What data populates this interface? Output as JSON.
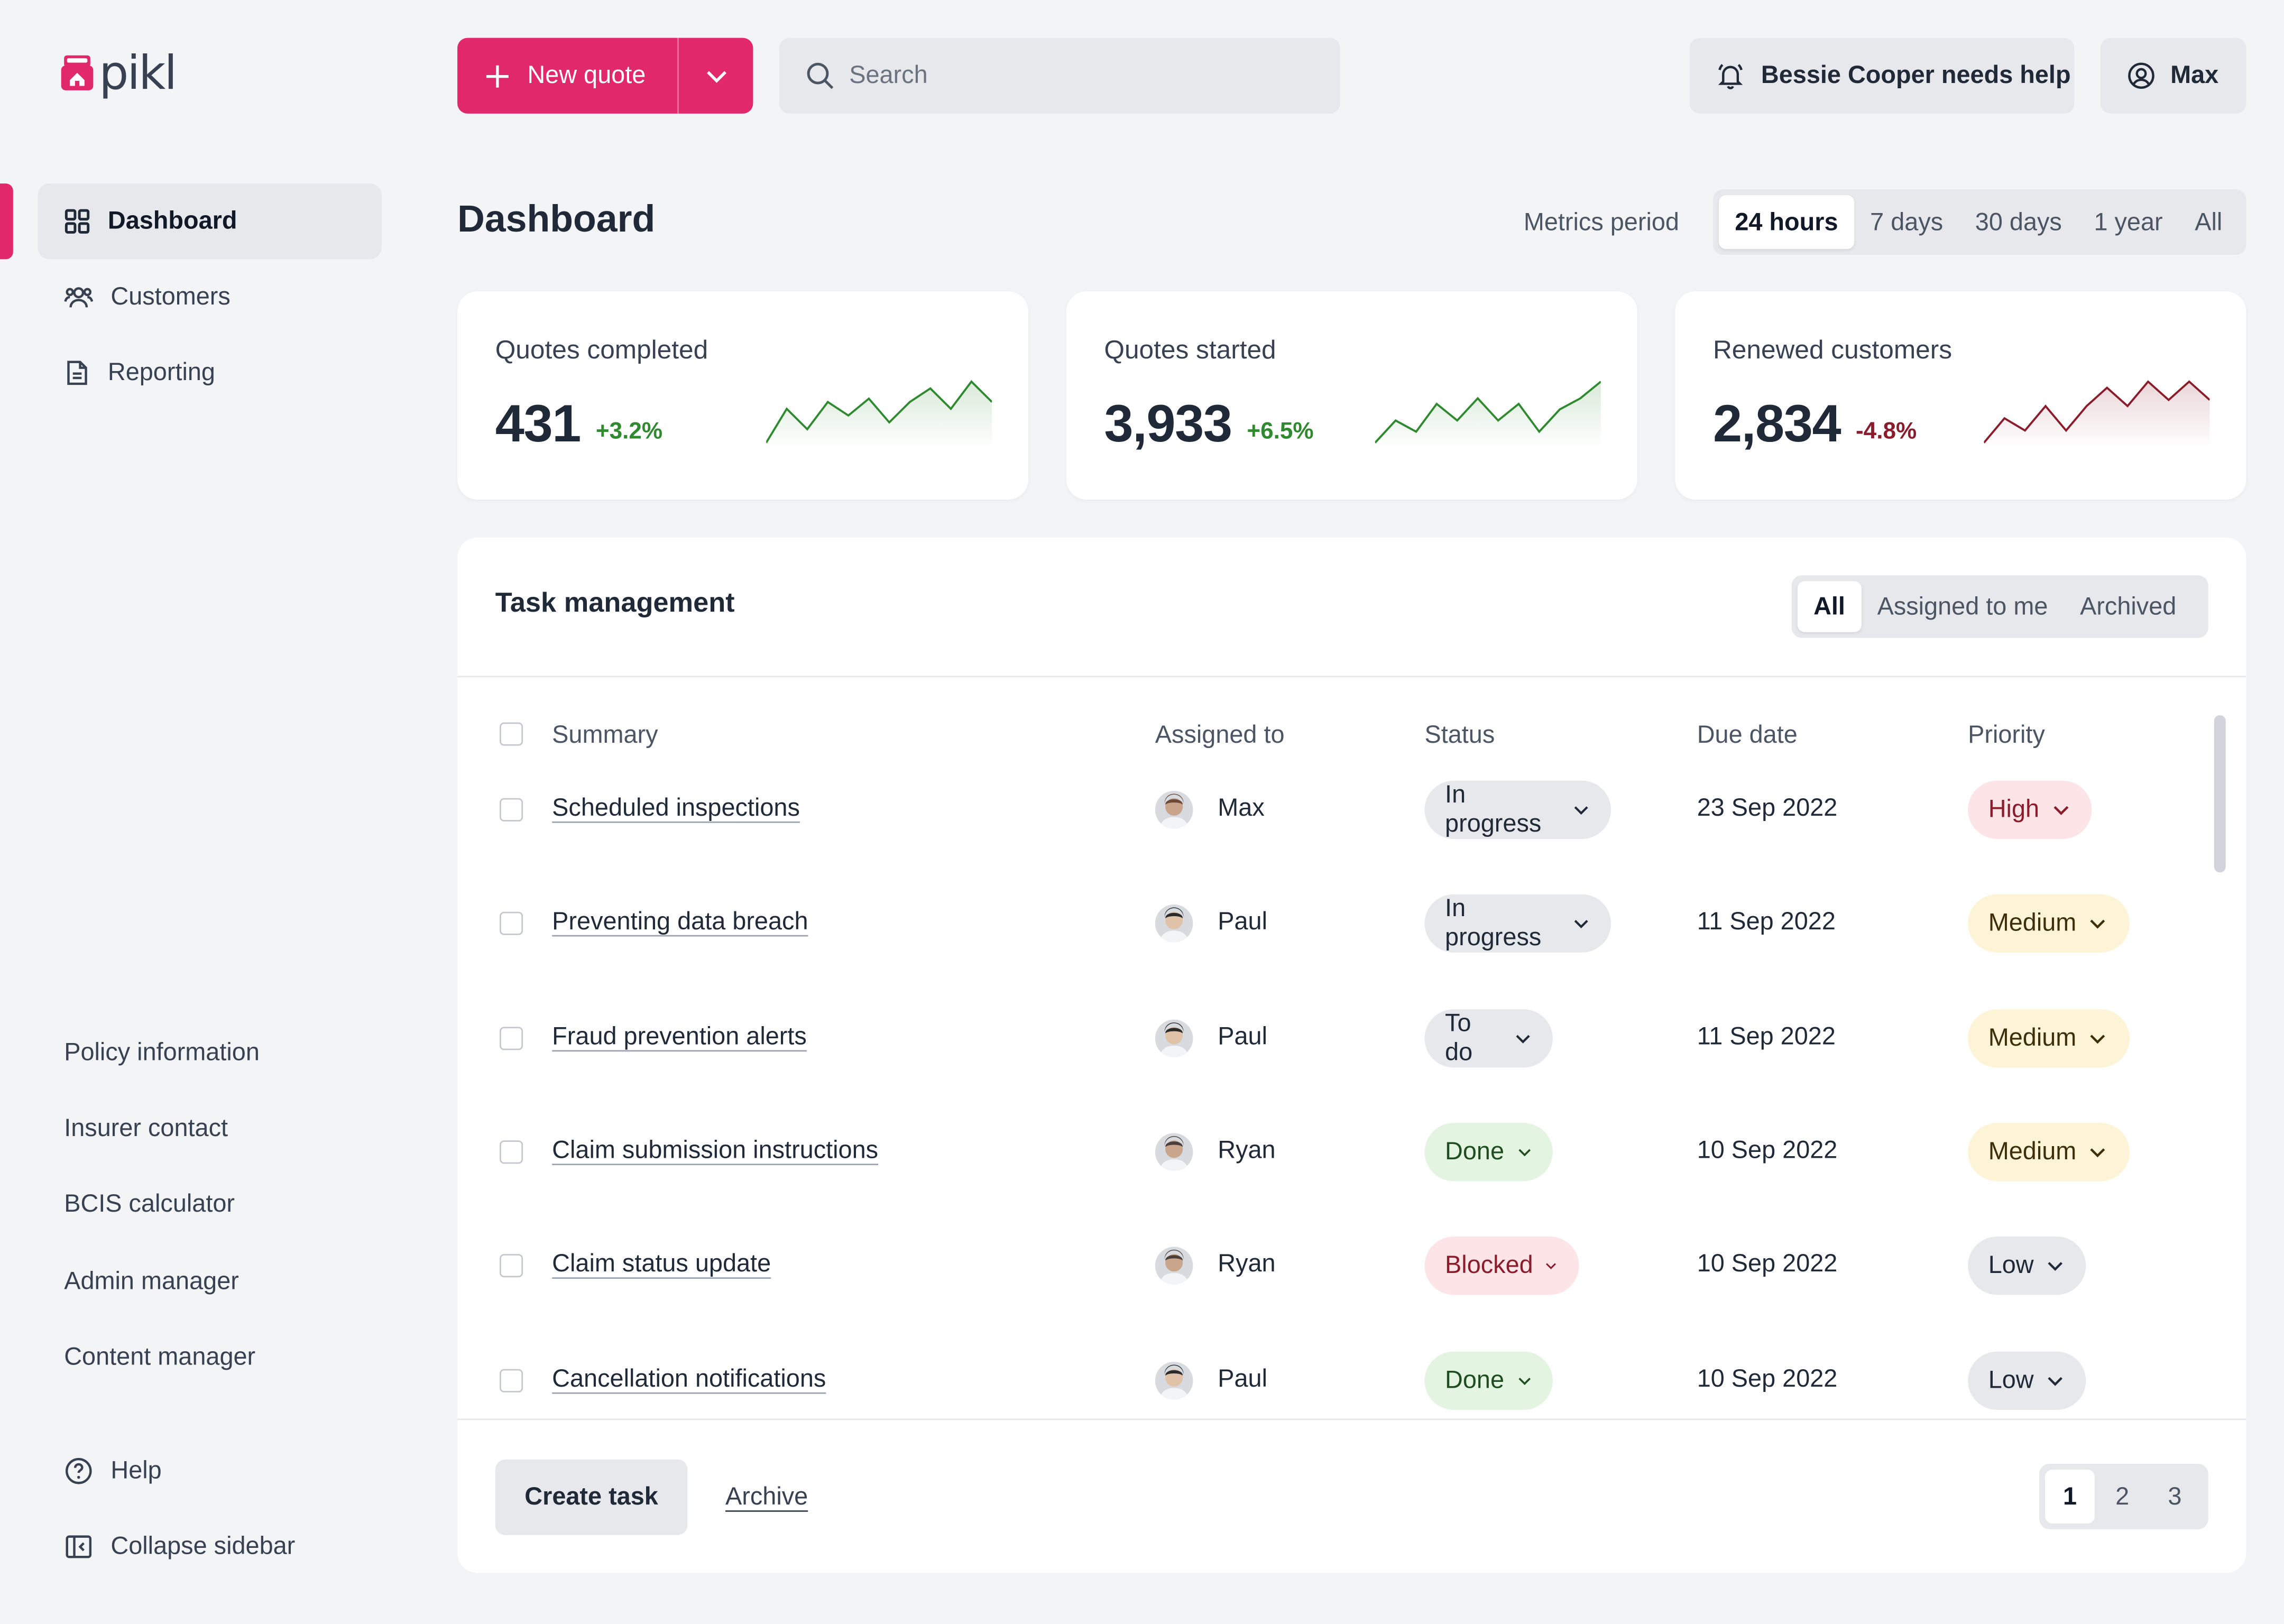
{
  "brand": {
    "name": "pikl",
    "accent": "#e0286b"
  },
  "sidebar": {
    "items": [
      {
        "label": "Dashboard",
        "icon": "dashboard-grid-icon",
        "active": true
      },
      {
        "label": "Customers",
        "icon": "users-icon",
        "active": false
      },
      {
        "label": "Reporting",
        "icon": "document-icon",
        "active": false
      }
    ],
    "links": [
      "Policy information",
      "Insurer contact",
      "BCIS calculator",
      "Admin manager",
      "Content manager"
    ],
    "help": "Help",
    "collapse": "Collapse sidebar"
  },
  "topbar": {
    "new_quote": "New quote",
    "search_placeholder": "Search",
    "help_alert": "Bessie Cooper needs help",
    "user": "Max"
  },
  "header": {
    "title": "Dashboard",
    "metrics_label": "Metrics period",
    "periods": [
      "24 hours",
      "7 days",
      "30 days",
      "1 year",
      "All"
    ],
    "active_period": "24 hours"
  },
  "metrics": [
    {
      "label": "Quotes completed",
      "value": "431",
      "delta": "+3.2%",
      "trend": "up",
      "color": "#2f8a2f",
      "spark": [
        2,
        12,
        6,
        14,
        10,
        15,
        8,
        14,
        18,
        12,
        20,
        14
      ]
    },
    {
      "label": "Quotes started",
      "value": "3,933",
      "delta": "+6.5%",
      "trend": "up",
      "color": "#2f8a2f",
      "spark": [
        2,
        10,
        6,
        16,
        10,
        18,
        10,
        16,
        6,
        14,
        18,
        24
      ]
    },
    {
      "label": "Renewed customers",
      "value": "2,834",
      "delta": "-4.8%",
      "trend": "down",
      "color": "#8a1c2c",
      "spark": [
        2,
        10,
        6,
        14,
        6,
        14,
        20,
        14,
        22,
        16,
        22,
        16
      ]
    }
  ],
  "tasks": {
    "title": "Task management",
    "tabs": [
      "All",
      "Assigned to me",
      "Archived"
    ],
    "active_tab": "All",
    "columns": {
      "summary": "Summary",
      "assigned": "Assigned to",
      "status": "Status",
      "due": "Due date",
      "priority": "Priority"
    },
    "rows": [
      {
        "summary": "Scheduled inspections",
        "assignee": "Max",
        "status": "In progress",
        "due": "23 Sep 2022",
        "priority": "High"
      },
      {
        "summary": "Preventing data breach",
        "assignee": "Paul",
        "status": "In progress",
        "due": "11 Sep 2022",
        "priority": "Medium"
      },
      {
        "summary": "Fraud prevention alerts",
        "assignee": "Paul",
        "status": "To do",
        "due": "11 Sep 2022",
        "priority": "Medium"
      },
      {
        "summary": "Claim submission instructions",
        "assignee": "Ryan",
        "status": "Done",
        "due": "10 Sep 2022",
        "priority": "Medium"
      },
      {
        "summary": "Claim status update",
        "assignee": "Ryan",
        "status": "Blocked",
        "due": "10 Sep 2022",
        "priority": "Low"
      },
      {
        "summary": "Cancellation notifications",
        "assignee": "Paul",
        "status": "Done",
        "due": "10 Sep 2022",
        "priority": "Low"
      }
    ],
    "create_task": "Create task",
    "archive": "Archive",
    "pages": [
      "1",
      "2",
      "3"
    ],
    "active_page": "1"
  },
  "status_colors": {
    "In progress": {
      "bg": "#e7e8eb",
      "fg": "#1f2937"
    },
    "To do": {
      "bg": "#e7e8eb",
      "fg": "#1f2937"
    },
    "Done": {
      "bg": "#e3f5e1",
      "fg": "#1f4d1f"
    },
    "Blocked": {
      "bg": "#fde4e6",
      "fg": "#8a1c2c"
    }
  },
  "priority_colors": {
    "High": {
      "bg": "#fde4e6",
      "fg": "#8a1c2c"
    },
    "Medium": {
      "bg": "#fdf3d6",
      "fg": "#3d2f0a"
    },
    "Low": {
      "bg": "#e7e8eb",
      "fg": "#1f2937"
    }
  }
}
